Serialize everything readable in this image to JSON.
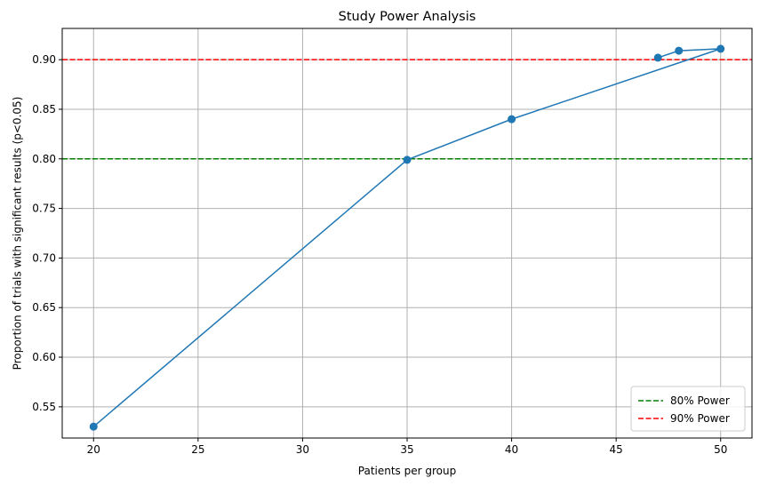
{
  "chart_data": {
    "type": "line",
    "title": "Study Power Analysis",
    "xlabel": "Patients per group",
    "ylabel": "Proportion of trials with significant results (p<0.05)",
    "xlim": [
      18.5,
      51.5
    ],
    "ylim": [
      0.5185,
      0.9315
    ],
    "xticks": [
      20,
      25,
      30,
      35,
      40,
      45,
      50
    ],
    "yticks": [
      0.55,
      0.6,
      0.65,
      0.7,
      0.75,
      0.8,
      0.85,
      0.9
    ],
    "grid": true,
    "series": [
      {
        "x": [
          20,
          35,
          40,
          50,
          48,
          47
        ],
        "y": [
          0.53,
          0.799,
          0.84,
          0.911,
          0.909,
          0.902
        ],
        "color": "#1f77b4",
        "marker": "circle"
      }
    ],
    "reference_lines": [
      {
        "name": "80% Power",
        "y": 0.8,
        "color": "#008000",
        "style": "dashed"
      },
      {
        "name": "90% Power",
        "y": 0.9,
        "color": "#ff0000",
        "style": "dashed"
      }
    ],
    "legend_position": "bottom-right"
  }
}
